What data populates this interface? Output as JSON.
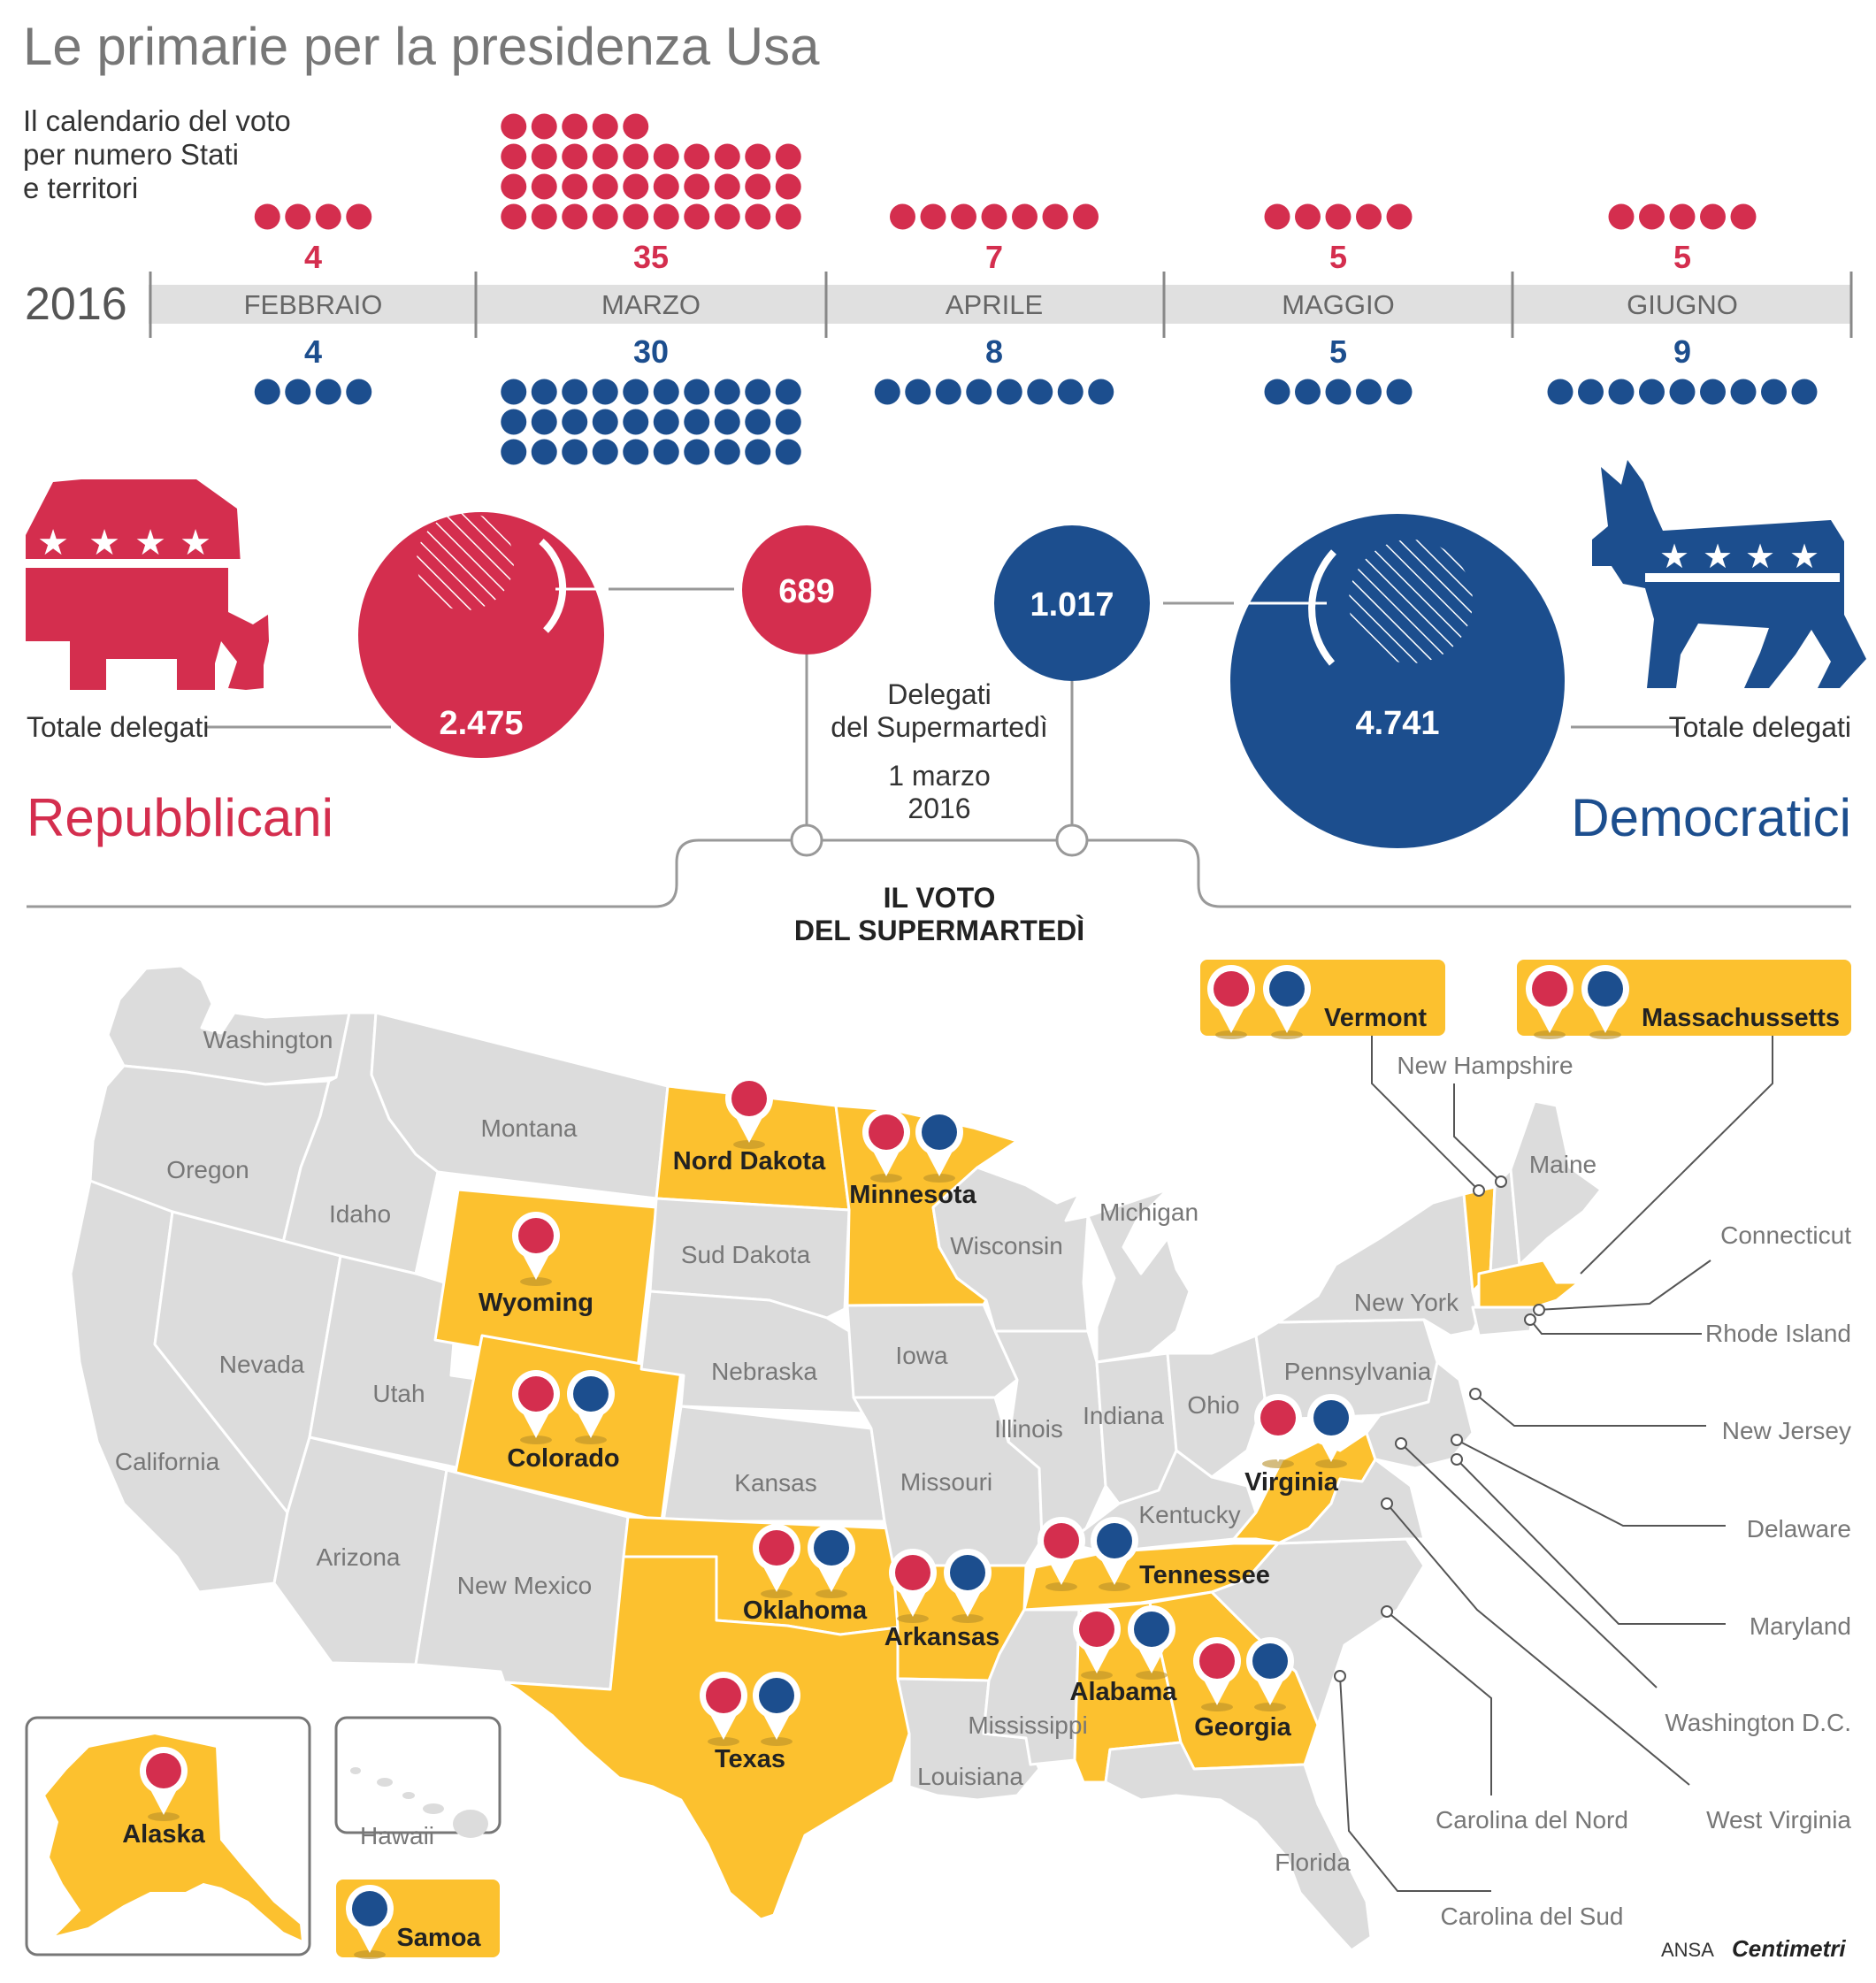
{
  "header": {
    "title": "Le primarie per la presidenza Usa",
    "subtitle": "Il calendario del voto\nper numero Stati\ne territori",
    "year": "2016"
  },
  "colors": {
    "republican": "#d42e4e",
    "democrat": "#1c4e8e",
    "highlight": "#fcc12f",
    "state_gray": "#dcdcdc",
    "timeline_bar": "#e0e0e0"
  },
  "calendar": [
    {
      "month": "FEBBRAIO",
      "rep": 4,
      "dem": 4
    },
    {
      "month": "MARZO",
      "rep": 35,
      "dem": 30
    },
    {
      "month": "APRILE",
      "rep": 7,
      "dem": 8
    },
    {
      "month": "MAGGIO",
      "rep": 5,
      "dem": 5
    },
    {
      "month": "GIUGNO",
      "rep": 5,
      "dem": 9
    }
  ],
  "republicans": {
    "party": "Repubblicani",
    "total_label": "Totale delegati",
    "total": "2.475",
    "super_tuesday": "689"
  },
  "democrats": {
    "party": "Democratici",
    "total_label": "Totale delegati",
    "total": "4.741",
    "super_tuesday": "1.017"
  },
  "super_tuesday": {
    "label": "Delegati\ndel Supermartedì",
    "date": "1 marzo\n2016",
    "heading": "IL VOTO\nDEL SUPERMARTEDÌ"
  },
  "voting_states": [
    {
      "name": "Nord Dakota",
      "rep": true,
      "dem": false
    },
    {
      "name": "Minnesota",
      "rep": true,
      "dem": true
    },
    {
      "name": "Wyoming",
      "rep": true,
      "dem": false
    },
    {
      "name": "Colorado",
      "rep": true,
      "dem": true
    },
    {
      "name": "Virginia",
      "rep": true,
      "dem": true
    },
    {
      "name": "Oklahoma",
      "rep": true,
      "dem": true
    },
    {
      "name": "Arkansas",
      "rep": true,
      "dem": true
    },
    {
      "name": "Tennessee",
      "rep": true,
      "dem": true
    },
    {
      "name": "Texas",
      "rep": true,
      "dem": true
    },
    {
      "name": "Alabama",
      "rep": true,
      "dem": true
    },
    {
      "name": "Georgia",
      "rep": true,
      "dem": true
    },
    {
      "name": "Vermont",
      "rep": true,
      "dem": true
    },
    {
      "name": "Massachussetts",
      "rep": true,
      "dem": true
    },
    {
      "name": "Alaska",
      "rep": true,
      "dem": false
    },
    {
      "name": "Samoa",
      "rep": false,
      "dem": true
    }
  ],
  "other_states": [
    "Washington",
    "Oregon",
    "Montana",
    "Idaho",
    "Nevada",
    "California",
    "Utah",
    "Arizona",
    "New Mexico",
    "Sud Dakota",
    "Nebraska",
    "Kansas",
    "Iowa",
    "Missouri",
    "Wisconsin",
    "Illinois",
    "Michigan",
    "Indiana",
    "Ohio",
    "Kentucky",
    "Pennsylvania",
    "New York",
    "Mississippi",
    "Louisiana",
    "Florida",
    "Hawaii"
  ],
  "callouts": [
    "New Hampshire",
    "Maine",
    "Connecticut",
    "Rhode Island",
    "New Jersey",
    "Delaware",
    "Maryland",
    "Washington D.C.",
    "West Virginia",
    "Carolina del Nord",
    "Carolina del Sud"
  ],
  "credit": {
    "agency": "ANSA",
    "brand": "Centimetri"
  }
}
